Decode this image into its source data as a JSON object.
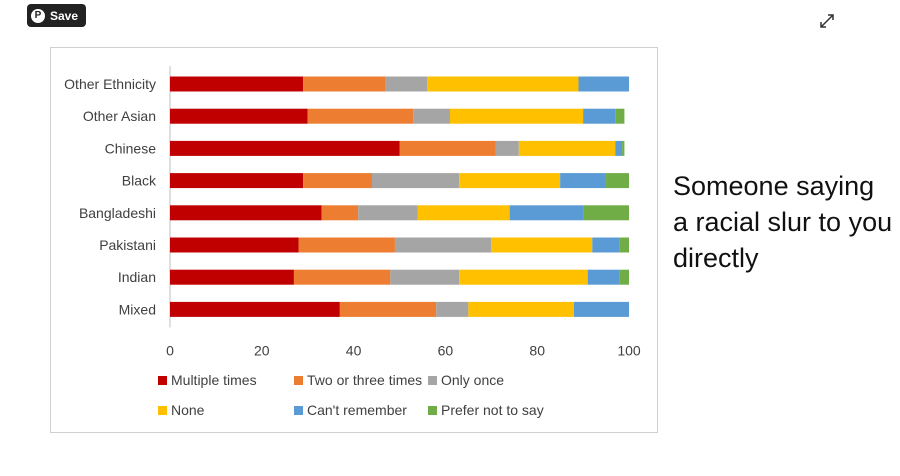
{
  "toolbar": {
    "save_label": "Save",
    "pin_glyph": "P"
  },
  "caption": "Someone saying a racial slur to you directly",
  "chart_data": {
    "type": "bar",
    "orientation": "horizontal",
    "stacked": true,
    "title": "",
    "xlabel": "",
    "ylabel": "",
    "xlim": [
      0,
      100
    ],
    "x_ticks": [
      0,
      20,
      40,
      60,
      80,
      100
    ],
    "grid": false,
    "legend_position": "bottom",
    "categories": [
      "Other Ethnicity",
      "Other Asian",
      "Chinese",
      "Black",
      "Bangladeshi",
      "Pakistani",
      "Indian",
      "Mixed"
    ],
    "series": [
      {
        "name": "Multiple times",
        "color": "#c00000",
        "values": [
          29,
          30,
          50,
          29,
          33,
          28,
          27,
          37
        ]
      },
      {
        "name": "Two or three times",
        "color": "#ed7d31",
        "values": [
          18,
          23,
          21,
          15,
          8,
          21,
          21,
          21
        ]
      },
      {
        "name": "Only once",
        "color": "#a5a5a5",
        "values": [
          9,
          8,
          5,
          19,
          13,
          21,
          15,
          7
        ]
      },
      {
        "name": "None",
        "color": "#ffc000",
        "values": [
          33,
          29,
          21,
          22,
          20,
          22,
          28,
          23
        ]
      },
      {
        "name": "Can't remember",
        "color": "#5b9bd5",
        "values": [
          11,
          7,
          1.5,
          10,
          16,
          6,
          7,
          12
        ]
      },
      {
        "name": "Prefer not to say",
        "color": "#70ad47",
        "values": [
          0,
          2,
          0.5,
          5,
          10,
          2,
          2,
          0
        ]
      }
    ]
  }
}
